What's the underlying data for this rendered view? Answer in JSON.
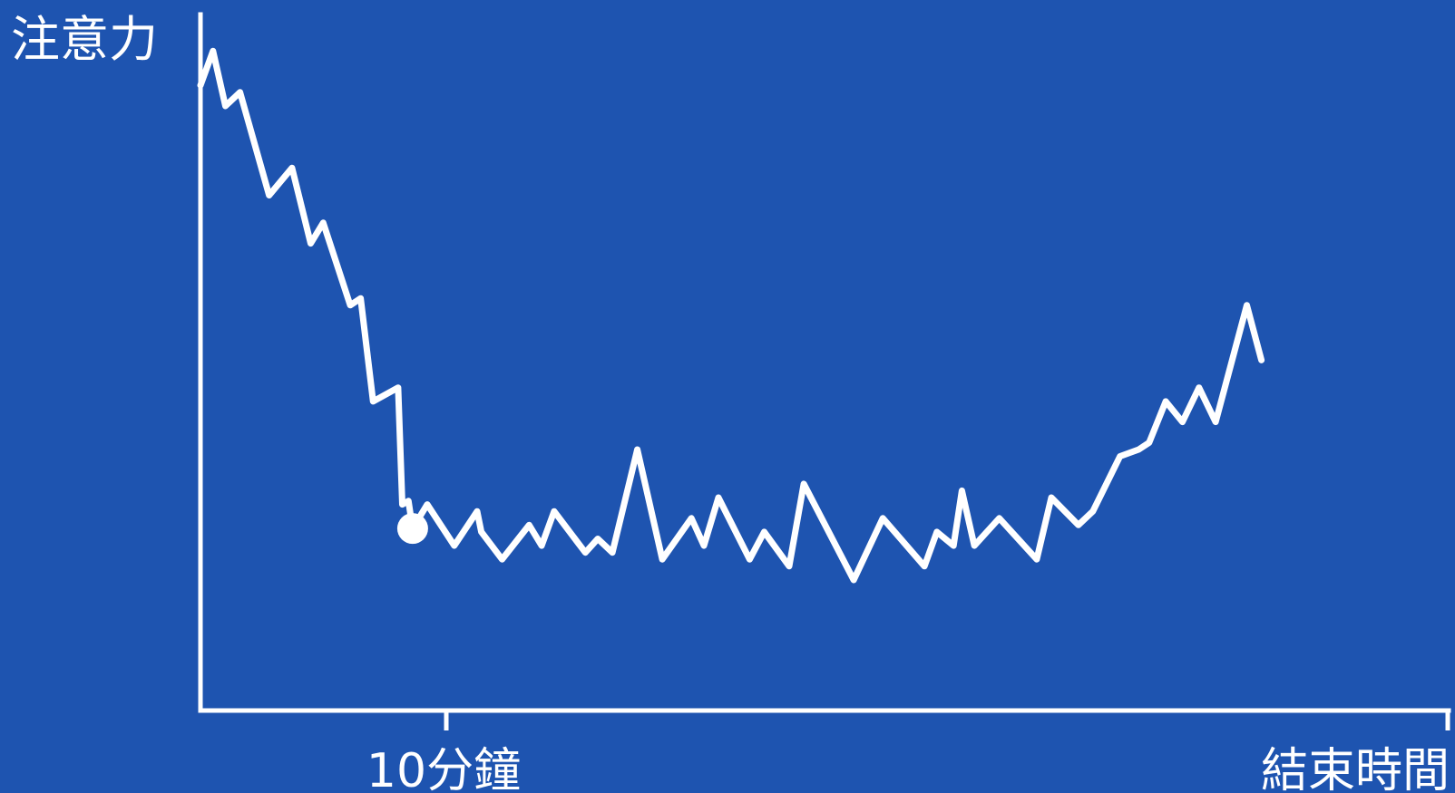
{
  "background_color": "#1E54B0",
  "line_color": "#FFFFFF",
  "chart_data": {
    "type": "line",
    "title": "",
    "xlabel": "",
    "ylabel": "注意力",
    "tick_labels": [
      "10分鐘",
      "結束時間"
    ],
    "x_end": 60,
    "y_range": [
      0,
      100
    ],
    "grid": false,
    "legend": "none",
    "marker": {
      "x": 10.2,
      "y": 26.5
    },
    "series": [
      {
        "points": [
          [
            0,
            91
          ],
          [
            0.6,
            96
          ],
          [
            1.2,
            88
          ],
          [
            1.9,
            90
          ],
          [
            3.3,
            75
          ],
          [
            4.4,
            79
          ],
          [
            5.3,
            68
          ],
          [
            5.9,
            71
          ],
          [
            7.2,
            59
          ],
          [
            7.7,
            60
          ],
          [
            8.3,
            45
          ],
          [
            9.5,
            47
          ],
          [
            9.7,
            30
          ],
          [
            10.0,
            30.5
          ],
          [
            10.2,
            26.5
          ],
          [
            10.9,
            30
          ],
          [
            12.2,
            24
          ],
          [
            13.3,
            29
          ],
          [
            13.5,
            26
          ],
          [
            14.5,
            22
          ],
          [
            15.8,
            27
          ],
          [
            16.4,
            24
          ],
          [
            17.0,
            29
          ],
          [
            18.5,
            23
          ],
          [
            19.1,
            25
          ],
          [
            19.8,
            23
          ],
          [
            21.0,
            38
          ],
          [
            22.2,
            22
          ],
          [
            23.6,
            28
          ],
          [
            24.2,
            24
          ],
          [
            24.9,
            31
          ],
          [
            26.4,
            22
          ],
          [
            27.1,
            26
          ],
          [
            28.3,
            21
          ],
          [
            29.0,
            33
          ],
          [
            31.4,
            19
          ],
          [
            32.8,
            28
          ],
          [
            34.8,
            21
          ],
          [
            35.4,
            26
          ],
          [
            36.2,
            24
          ],
          [
            36.6,
            32
          ],
          [
            37.2,
            24
          ],
          [
            38.4,
            28
          ],
          [
            40.2,
            22
          ],
          [
            40.9,
            31
          ],
          [
            42.2,
            27
          ],
          [
            42.9,
            29
          ],
          [
            44.2,
            37
          ],
          [
            45.1,
            38
          ],
          [
            45.6,
            39
          ],
          [
            46.4,
            45
          ],
          [
            47.2,
            42
          ],
          [
            48.0,
            47
          ],
          [
            48.8,
            42
          ],
          [
            50.3,
            59
          ],
          [
            51.0,
            51
          ]
        ]
      }
    ]
  }
}
